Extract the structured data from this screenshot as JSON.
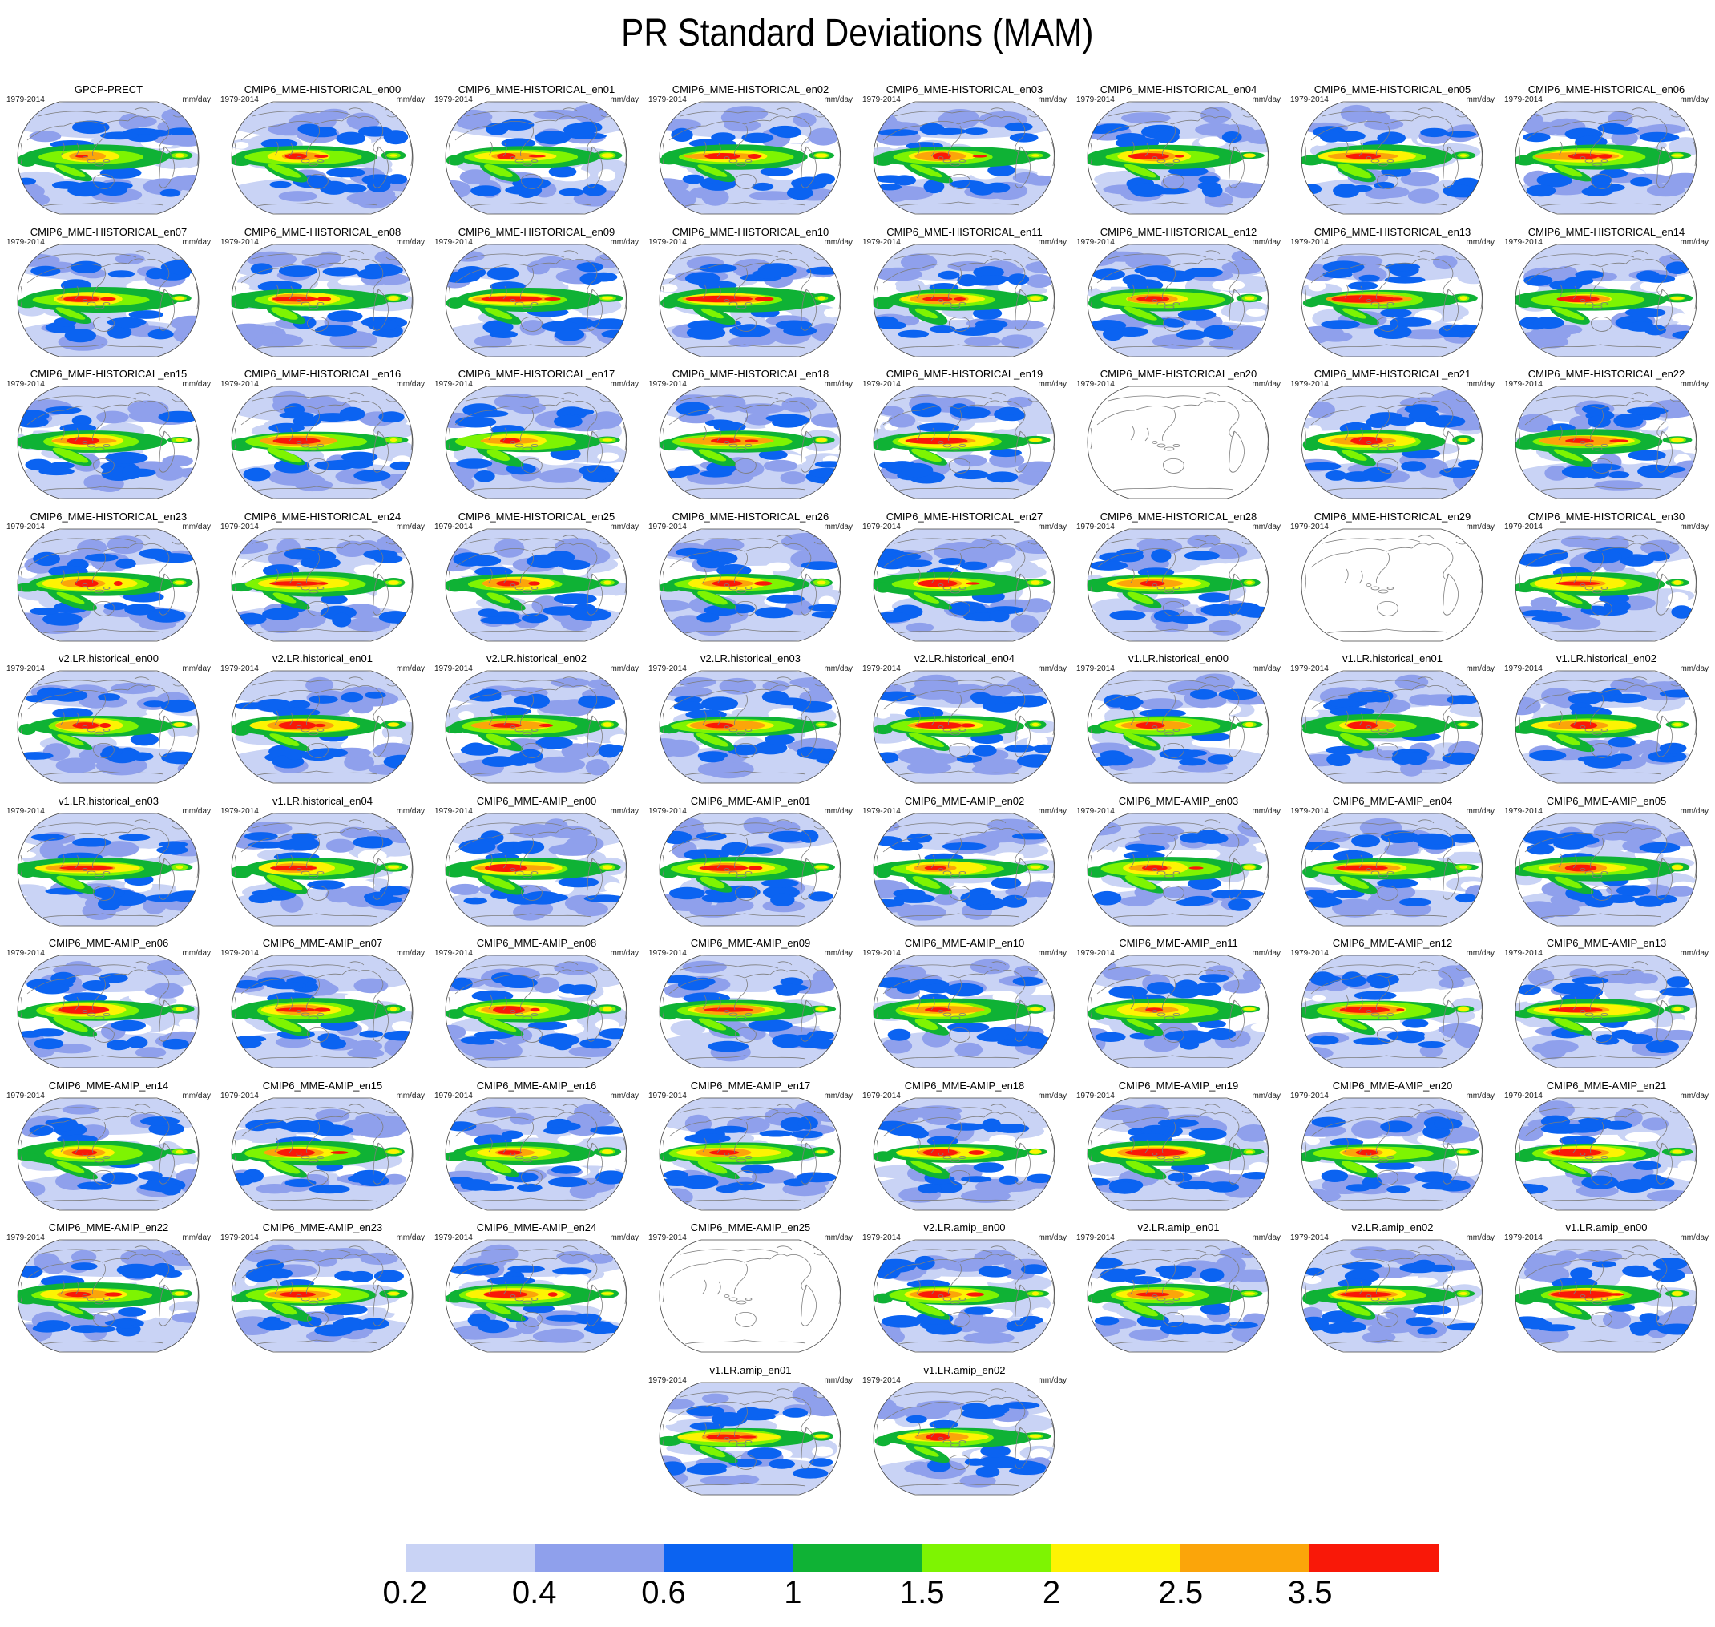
{
  "title": "PR Standard Deviations (MAM)",
  "panel_meta": {
    "period": "1979-2014",
    "units": "mm/day"
  },
  "rows": [
    {
      "panels": [
        {
          "label": "GPCP-PRECT"
        },
        {
          "label": "CMIP6_MME-HISTORICAL_en00"
        },
        {
          "label": "CMIP6_MME-HISTORICAL_en01"
        },
        {
          "label": "CMIP6_MME-HISTORICAL_en02"
        },
        {
          "label": "CMIP6_MME-HISTORICAL_en03"
        },
        {
          "label": "CMIP6_MME-HISTORICAL_en04"
        },
        {
          "label": "CMIP6_MME-HISTORICAL_en05"
        },
        {
          "label": "CMIP6_MME-HISTORICAL_en06"
        }
      ]
    },
    {
      "panels": [
        {
          "label": "CMIP6_MME-HISTORICAL_en07"
        },
        {
          "label": "CMIP6_MME-HISTORICAL_en08"
        },
        {
          "label": "CMIP6_MME-HISTORICAL_en09"
        },
        {
          "label": "CMIP6_MME-HISTORICAL_en10"
        },
        {
          "label": "CMIP6_MME-HISTORICAL_en11"
        },
        {
          "label": "CMIP6_MME-HISTORICAL_en12"
        },
        {
          "label": "CMIP6_MME-HISTORICAL_en13"
        },
        {
          "label": "CMIP6_MME-HISTORICAL_en14"
        }
      ]
    },
    {
      "panels": [
        {
          "label": "CMIP6_MME-HISTORICAL_en15"
        },
        {
          "label": "CMIP6_MME-HISTORICAL_en16"
        },
        {
          "label": "CMIP6_MME-HISTORICAL_en17"
        },
        {
          "label": "CMIP6_MME-HISTORICAL_en18"
        },
        {
          "label": "CMIP6_MME-HISTORICAL_en19"
        },
        {
          "label": "CMIP6_MME-HISTORICAL_en20",
          "blank": true
        },
        {
          "label": "CMIP6_MME-HISTORICAL_en21"
        },
        {
          "label": "CMIP6_MME-HISTORICAL_en22"
        }
      ]
    },
    {
      "panels": [
        {
          "label": "CMIP6_MME-HISTORICAL_en23"
        },
        {
          "label": "CMIP6_MME-HISTORICAL_en24"
        },
        {
          "label": "CMIP6_MME-HISTORICAL_en25"
        },
        {
          "label": "CMIP6_MME-HISTORICAL_en26"
        },
        {
          "label": "CMIP6_MME-HISTORICAL_en27"
        },
        {
          "label": "CMIP6_MME-HISTORICAL_en28"
        },
        {
          "label": "CMIP6_MME-HISTORICAL_en29",
          "blank": true
        },
        {
          "label": "CMIP6_MME-HISTORICAL_en30"
        }
      ]
    },
    {
      "panels": [
        {
          "label": "v2.LR.historical_en00"
        },
        {
          "label": "v2.LR.historical_en01"
        },
        {
          "label": "v2.LR.historical_en02"
        },
        {
          "label": "v2.LR.historical_en03"
        },
        {
          "label": "v2.LR.historical_en04"
        },
        {
          "label": "v1.LR.historical_en00"
        },
        {
          "label": "v1.LR.historical_en01"
        },
        {
          "label": "v1.LR.historical_en02"
        }
      ]
    },
    {
      "panels": [
        {
          "label": "v1.LR.historical_en03"
        },
        {
          "label": "v1.LR.historical_en04"
        },
        {
          "label": "CMIP6_MME-AMIP_en00"
        },
        {
          "label": "CMIP6_MME-AMIP_en01"
        },
        {
          "label": "CMIP6_MME-AMIP_en02"
        },
        {
          "label": "CMIP6_MME-AMIP_en03"
        },
        {
          "label": "CMIP6_MME-AMIP_en04"
        },
        {
          "label": "CMIP6_MME-AMIP_en05"
        }
      ]
    },
    {
      "panels": [
        {
          "label": "CMIP6_MME-AMIP_en06"
        },
        {
          "label": "CMIP6_MME-AMIP_en07"
        },
        {
          "label": "CMIP6_MME-AMIP_en08"
        },
        {
          "label": "CMIP6_MME-AMIP_en09"
        },
        {
          "label": "CMIP6_MME-AMIP_en10"
        },
        {
          "label": "CMIP6_MME-AMIP_en11"
        },
        {
          "label": "CMIP6_MME-AMIP_en12"
        },
        {
          "label": "CMIP6_MME-AMIP_en13"
        }
      ]
    },
    {
      "panels": [
        {
          "label": "CMIP6_MME-AMIP_en14"
        },
        {
          "label": "CMIP6_MME-AMIP_en15"
        },
        {
          "label": "CMIP6_MME-AMIP_en16"
        },
        {
          "label": "CMIP6_MME-AMIP_en17"
        },
        {
          "label": "CMIP6_MME-AMIP_en18"
        },
        {
          "label": "CMIP6_MME-AMIP_en19"
        },
        {
          "label": "CMIP6_MME-AMIP_en20"
        },
        {
          "label": "CMIP6_MME-AMIP_en21"
        }
      ]
    },
    {
      "panels": [
        {
          "label": "CMIP6_MME-AMIP_en22"
        },
        {
          "label": "CMIP6_MME-AMIP_en23"
        },
        {
          "label": "CMIP6_MME-AMIP_en24"
        },
        {
          "label": "CMIP6_MME-AMIP_en25",
          "blank": true
        },
        {
          "label": "v2.LR.amip_en00"
        },
        {
          "label": "v2.LR.amip_en01"
        },
        {
          "label": "v2.LR.amip_en02"
        },
        {
          "label": "v1.LR.amip_en00"
        }
      ]
    },
    {
      "panels": [
        {
          "label": "v1.LR.amip_en01",
          "col": 3
        },
        {
          "label": "v1.LR.amip_en02",
          "col": 4
        }
      ]
    }
  ],
  "colorbar": {
    "colors": [
      "#ffffff",
      "#c9d3f5",
      "#8fa0ec",
      "#0b63f1",
      "#0fb235",
      "#7ef402",
      "#fdf303",
      "#fba50a",
      "#f91808"
    ],
    "tick_labels": [
      "0.2",
      "0.4",
      "0.6",
      "1",
      "1.5",
      "2",
      "2.5",
      "3.5"
    ]
  },
  "chart_data": {
    "type": "heatmap",
    "title": "PR Standard Deviations (MAM)",
    "subtitle": "",
    "period": "1979-2014",
    "units": "mm/day",
    "projection": "robinson global maps, pacific-centered",
    "grid": {
      "rows": 10,
      "columns": 8
    },
    "colorbar_levels": [
      0.2,
      0.4,
      0.6,
      1,
      1.5,
      2,
      2.5,
      3.5
    ],
    "colorbar_colors": [
      "#ffffff",
      "#c9d3f5",
      "#8fa0ec",
      "#0b63f1",
      "#0fb235",
      "#7ef402",
      "#fdf303",
      "#fba50a",
      "#f91808"
    ],
    "legend_position": "bottom",
    "panels": [
      "GPCP-PRECT",
      "CMIP6_MME-HISTORICAL_en00",
      "CMIP6_MME-HISTORICAL_en01",
      "CMIP6_MME-HISTORICAL_en02",
      "CMIP6_MME-HISTORICAL_en03",
      "CMIP6_MME-HISTORICAL_en04",
      "CMIP6_MME-HISTORICAL_en05",
      "CMIP6_MME-HISTORICAL_en06",
      "CMIP6_MME-HISTORICAL_en07",
      "CMIP6_MME-HISTORICAL_en08",
      "CMIP6_MME-HISTORICAL_en09",
      "CMIP6_MME-HISTORICAL_en10",
      "CMIP6_MME-HISTORICAL_en11",
      "CMIP6_MME-HISTORICAL_en12",
      "CMIP6_MME-HISTORICAL_en13",
      "CMIP6_MME-HISTORICAL_en14",
      "CMIP6_MME-HISTORICAL_en15",
      "CMIP6_MME-HISTORICAL_en16",
      "CMIP6_MME-HISTORICAL_en17",
      "CMIP6_MME-HISTORICAL_en18",
      "CMIP6_MME-HISTORICAL_en19",
      "CMIP6_MME-HISTORICAL_en20",
      "CMIP6_MME-HISTORICAL_en21",
      "CMIP6_MME-HISTORICAL_en22",
      "CMIP6_MME-HISTORICAL_en23",
      "CMIP6_MME-HISTORICAL_en24",
      "CMIP6_MME-HISTORICAL_en25",
      "CMIP6_MME-HISTORICAL_en26",
      "CMIP6_MME-HISTORICAL_en27",
      "CMIP6_MME-HISTORICAL_en28",
      "CMIP6_MME-HISTORICAL_en29",
      "CMIP6_MME-HISTORICAL_en30",
      "v2.LR.historical_en00",
      "v2.LR.historical_en01",
      "v2.LR.historical_en02",
      "v2.LR.historical_en03",
      "v2.LR.historical_en04",
      "v1.LR.historical_en00",
      "v1.LR.historical_en01",
      "v1.LR.historical_en02",
      "v1.LR.historical_en03",
      "v1.LR.historical_en04",
      "CMIP6_MME-AMIP_en00",
      "CMIP6_MME-AMIP_en01",
      "CMIP6_MME-AMIP_en02",
      "CMIP6_MME-AMIP_en03",
      "CMIP6_MME-AMIP_en04",
      "CMIP6_MME-AMIP_en05",
      "CMIP6_MME-AMIP_en06",
      "CMIP6_MME-AMIP_en07",
      "CMIP6_MME-AMIP_en08",
      "CMIP6_MME-AMIP_en09",
      "CMIP6_MME-AMIP_en10",
      "CMIP6_MME-AMIP_en11",
      "CMIP6_MME-AMIP_en12",
      "CMIP6_MME-AMIP_en13",
      "CMIP6_MME-AMIP_en14",
      "CMIP6_MME-AMIP_en15",
      "CMIP6_MME-AMIP_en16",
      "CMIP6_MME-AMIP_en17",
      "CMIP6_MME-AMIP_en18",
      "CMIP6_MME-AMIP_en19",
      "CMIP6_MME-AMIP_en20",
      "CMIP6_MME-AMIP_en21",
      "CMIP6_MME-AMIP_en22",
      "CMIP6_MME-AMIP_en23",
      "CMIP6_MME-AMIP_en24",
      "CMIP6_MME-AMIP_en25",
      "v2.LR.amip_en00",
      "v2.LR.amip_en01",
      "v2.LR.amip_en02",
      "v1.LR.amip_en00",
      "v1.LR.amip_en01",
      "v1.LR.amip_en02"
    ],
    "blank_panels": [
      "CMIP6_MME-HISTORICAL_en20",
      "CMIP6_MME-HISTORICAL_en29",
      "CMIP6_MME-AMIP_en25"
    ]
  }
}
